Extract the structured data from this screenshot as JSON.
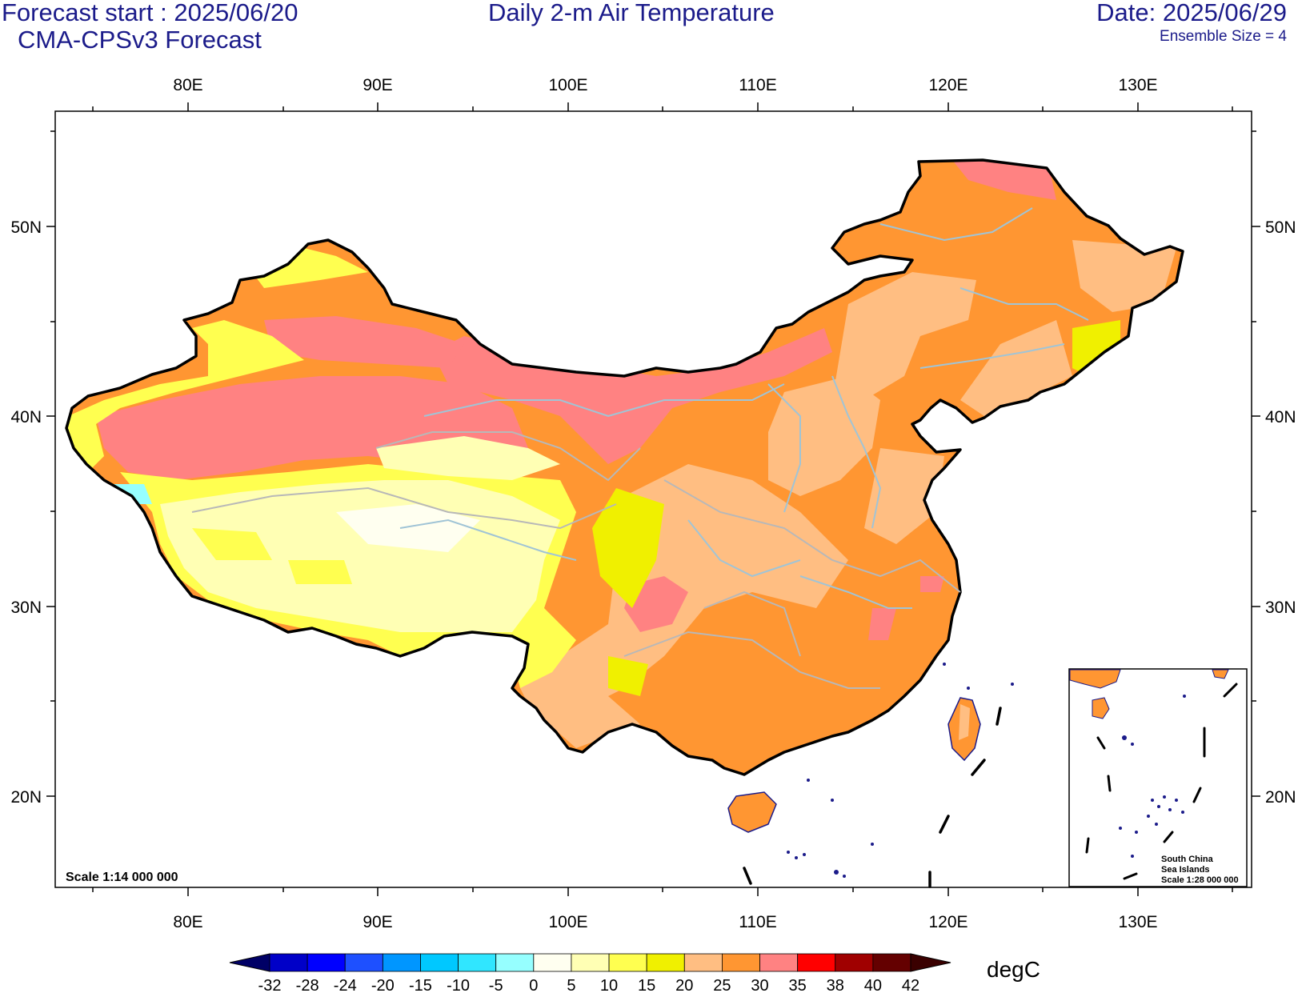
{
  "header": {
    "forecast_start": "Forecast start : 2025/06/20",
    "model": "CMA-CPSv3 Forecast",
    "title": "Daily 2-m Air Temperature",
    "date": "Date: 2025/06/29",
    "ensemble": "Ensemble Size = 4"
  },
  "map": {
    "lon_range": [
      73,
      136
    ],
    "lat_range": [
      15,
      56
    ],
    "lon_labels": [
      "80E",
      "90E",
      "100E",
      "110E",
      "120E",
      "130E"
    ],
    "lat_labels": [
      "20N",
      "30N",
      "40N",
      "50N"
    ],
    "scale_label": "Scale 1:14 000 000",
    "inset": {
      "line1": "South China",
      "line2": "Sea Islands",
      "line3": "Scale 1:28 000 000"
    }
  },
  "colorbar": {
    "units": "degC",
    "ticks": [
      "-32",
      "-28",
      "-24",
      "-20",
      "-15",
      "-10",
      "-5",
      "0",
      "5",
      "10",
      "15",
      "20",
      "25",
      "30",
      "35",
      "38",
      "40",
      "42"
    ],
    "colors": [
      "#000066",
      "#0000c8",
      "#0000ff",
      "#1e50ff",
      "#0096ff",
      "#00c8ff",
      "#30e6ff",
      "#96ffff",
      "#fffff0",
      "#ffffb4",
      "#ffff50",
      "#f0f000",
      "#ffbe82",
      "#ff9632",
      "#ff8282",
      "#ff0000",
      "#a00000",
      "#640000",
      "#3a0000"
    ]
  }
}
